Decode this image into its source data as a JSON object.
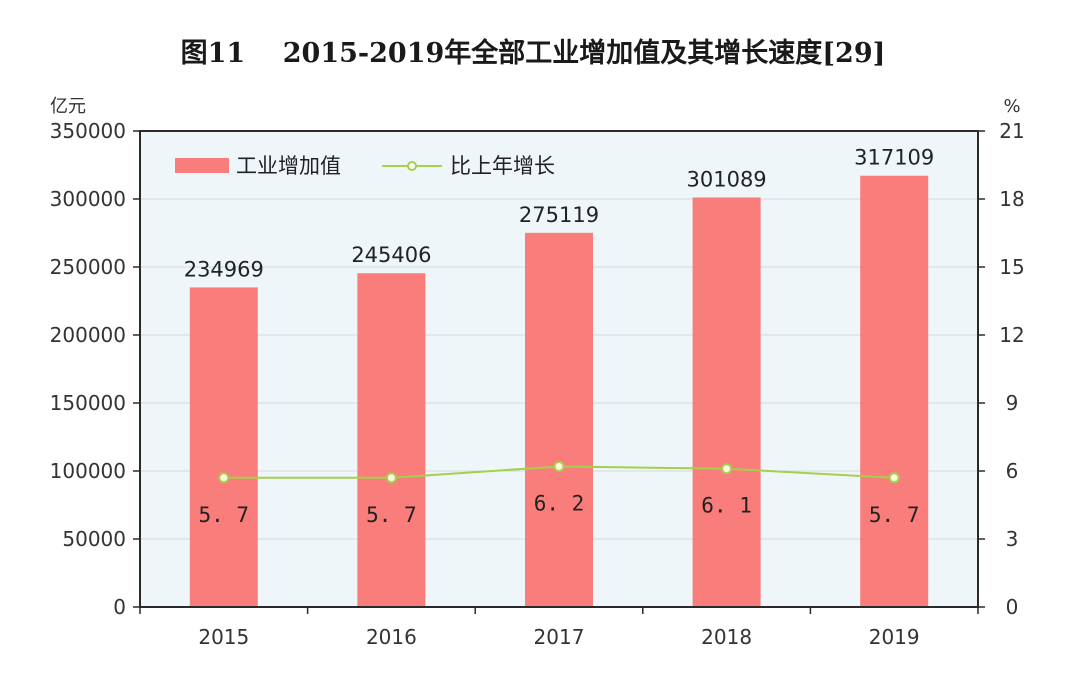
{
  "chart_data": {
    "type": "bar",
    "title": "图11    2015-2019年全部工业增加值及其增长速度[29]",
    "categories": [
      "2015",
      "2016",
      "2017",
      "2018",
      "2019"
    ],
    "series": [
      {
        "name": "工业增加值",
        "type": "bar",
        "axis": "left",
        "values": [
          234969,
          245406,
          275119,
          301089,
          317109
        ]
      },
      {
        "name": "比上年增长",
        "type": "line",
        "axis": "right",
        "values": [
          5.7,
          5.7,
          6.2,
          6.1,
          5.7
        ],
        "labels": [
          "5. 7",
          "5. 7",
          "6. 2",
          "6. 1",
          "5. 7"
        ]
      }
    ],
    "y_left": {
      "unit": "亿元",
      "range": [
        0,
        350000
      ],
      "ticks": [
        0,
        50000,
        100000,
        150000,
        200000,
        250000,
        300000,
        350000
      ]
    },
    "y_right": {
      "unit": "%",
      "range": [
        0,
        21
      ],
      "ticks": [
        0,
        3,
        6,
        9,
        12,
        15,
        18,
        21
      ]
    },
    "grid": true,
    "legend": "top-left",
    "colors": {
      "bar": "#f87d7b",
      "line": "#a6cf4c",
      "plot_bg": "#eef6fa",
      "grid": "#d4dadd",
      "frame": "#2a2a2a"
    }
  }
}
